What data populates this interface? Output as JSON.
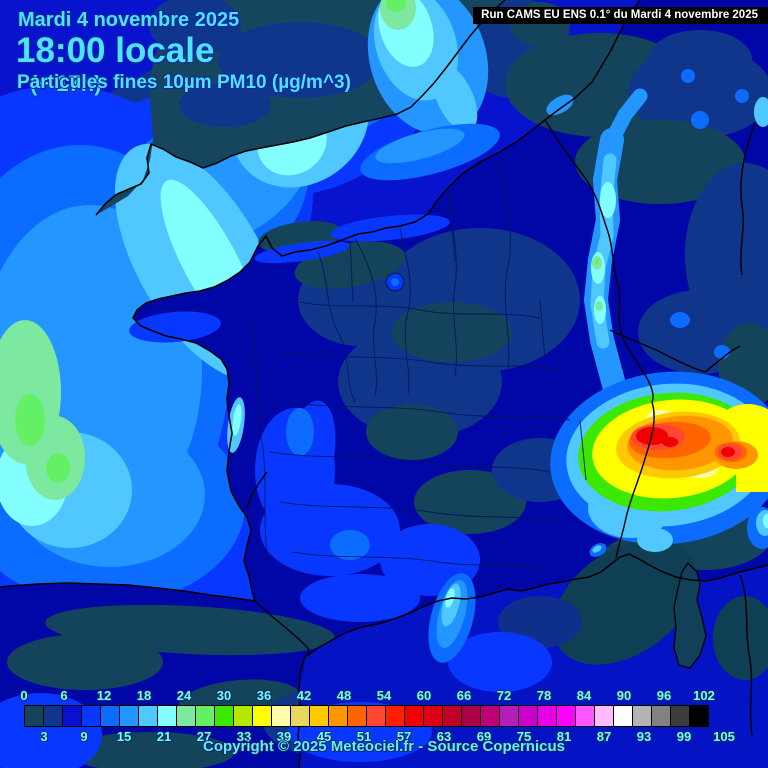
{
  "header": {
    "date": "Mardi 4 novembre 2025",
    "time": "18:00 locale",
    "offset": "(+ 17h)",
    "parameter": "Particules fines 10µm PM10 (µg/m^3)"
  },
  "run_banner": {
    "text": "Run CAMS EU ENS 0.1° du Mardi 4 novembre 2025"
  },
  "footer": {
    "copyright": "Copyright © 2025 Meteociel.fr - Source Copernicus"
  },
  "legend": {
    "unit": "µg/m^3",
    "scale_start": 0,
    "scale_step": 3,
    "top_labels": [
      "0",
      "6",
      "12",
      "18",
      "24",
      "30",
      "36",
      "42",
      "48",
      "54",
      "60",
      "66",
      "72",
      "78",
      "84",
      "90",
      "96",
      "102"
    ],
    "bottom_labels": [
      "3",
      "9",
      "15",
      "21",
      "27",
      "33",
      "39",
      "45",
      "51",
      "57",
      "63",
      "69",
      "75",
      "81",
      "87",
      "93",
      "99",
      "105"
    ],
    "colors": [
      "#14445c",
      "#10368c",
      "#0a10d0",
      "#0838ff",
      "#0c6cff",
      "#2496ff",
      "#50c8ff",
      "#84ffff",
      "#7ce8a0",
      "#64f064",
      "#3ce800",
      "#b4e800",
      "#ffff00",
      "#ffffaa",
      "#e8d75a",
      "#ffc800",
      "#ff9600",
      "#ff6400",
      "#ff4632",
      "#ff1e00",
      "#f00000",
      "#dc0014",
      "#c00028",
      "#aa0046",
      "#c00078",
      "#b41eb4",
      "#cc00cc",
      "#e600e6",
      "#ff00ff",
      "#ff55ff",
      "#ffbbff",
      "#ffffff",
      "#b4b4b4",
      "#828282",
      "#3c3c3c",
      "#000000"
    ]
  },
  "colors": {
    "header_text": "#4fe2ff",
    "legend_text": "#7dfbf2",
    "banner_background": "#000000",
    "banner_text": "#ffffff",
    "sea_base": "#0713cc",
    "land_base": "#0107a6",
    "hotspot_core": "#f00000"
  }
}
